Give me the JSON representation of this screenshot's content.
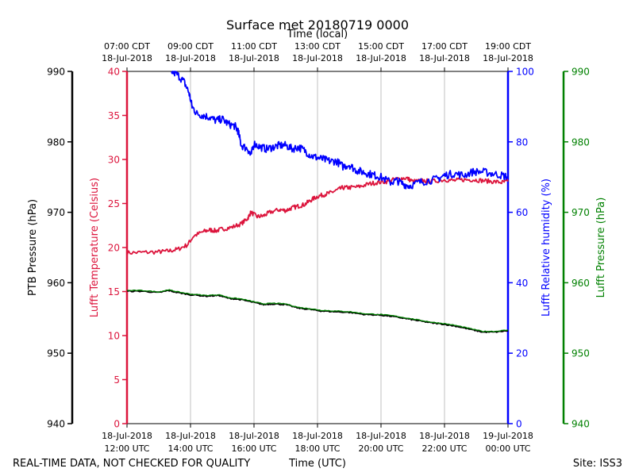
{
  "chart_data": {
    "type": "line",
    "title": "Surface met 20180719 0000",
    "top_axis_label": "Time (local)",
    "bottom_axis_label": "Time (UTC)",
    "x_range_hours_utc": [
      12,
      24
    ],
    "top_ticks": [
      {
        "h": 12,
        "line1": "07:00 CDT",
        "line2": "18-Jul-2018"
      },
      {
        "h": 14,
        "line1": "09:00 CDT",
        "line2": "18-Jul-2018"
      },
      {
        "h": 16,
        "line1": "11:00 CDT",
        "line2": "18-Jul-2018"
      },
      {
        "h": 18,
        "line1": "13:00 CDT",
        "line2": "18-Jul-2018"
      },
      {
        "h": 20,
        "line1": "15:00 CDT",
        "line2": "18-Jul-2018"
      },
      {
        "h": 22,
        "line1": "17:00 CDT",
        "line2": "18-Jul-2018"
      },
      {
        "h": 24,
        "line1": "19:00 CDT",
        "line2": "18-Jul-2018"
      }
    ],
    "bottom_ticks": [
      {
        "h": 12,
        "line1": "18-Jul-2018",
        "line2": "12:00 UTC"
      },
      {
        "h": 14,
        "line1": "18-Jul-2018",
        "line2": "14:00 UTC"
      },
      {
        "h": 16,
        "line1": "18-Jul-2018",
        "line2": "16:00 UTC"
      },
      {
        "h": 18,
        "line1": "18-Jul-2018",
        "line2": "18:00 UTC"
      },
      {
        "h": 20,
        "line1": "18-Jul-2018",
        "line2": "20:00 UTC"
      },
      {
        "h": 22,
        "line1": "18-Jul-2018",
        "line2": "22:00 UTC"
      },
      {
        "h": 24,
        "line1": "19-Jul-2018",
        "line2": "00:00 UTC"
      }
    ],
    "axes": {
      "ptb_pressure": {
        "label": "PTB Pressure (hPa)",
        "range": [
          940,
          990
        ],
        "ticks": [
          "940",
          "950",
          "960",
          "970",
          "980",
          "990"
        ],
        "color": "#000000"
      },
      "lufft_temperature": {
        "label": "Lufft Temperature (Celsius)",
        "range": [
          0,
          40
        ],
        "ticks": [
          "0",
          "5",
          "10",
          "15",
          "20",
          "25",
          "30",
          "35",
          "40"
        ],
        "color": "#dc143c"
      },
      "lufft_humidity": {
        "label": "Lufft Relative humidity (%)",
        "range": [
          0,
          100
        ],
        "ticks": [
          "0",
          "20",
          "40",
          "60",
          "80",
          "100"
        ],
        "color": "#0000ff"
      },
      "lufft_pressure": {
        "label": "Lufft Pressure (hPa)",
        "range": [
          940,
          990
        ],
        "ticks": [
          "940",
          "950",
          "960",
          "970",
          "980",
          "990"
        ],
        "color": "#008000"
      }
    },
    "series": [
      {
        "name": "Lufft Temperature",
        "axis": "lufft_temperature",
        "color": "#dc143c",
        "points": [
          [
            12.0,
            19.4
          ],
          [
            12.5,
            19.45
          ],
          [
            13.0,
            19.5
          ],
          [
            13.3,
            19.6
          ],
          [
            13.6,
            19.8
          ],
          [
            13.9,
            20.3
          ],
          [
            14.1,
            21.3
          ],
          [
            14.4,
            21.8
          ],
          [
            14.6,
            22.0
          ],
          [
            14.8,
            21.9
          ],
          [
            15.0,
            22.1
          ],
          [
            15.3,
            22.3
          ],
          [
            15.6,
            22.7
          ],
          [
            15.8,
            23.3
          ],
          [
            15.9,
            24.0
          ],
          [
            16.1,
            23.5
          ],
          [
            16.3,
            23.6
          ],
          [
            16.5,
            24.0
          ],
          [
            16.8,
            24.3
          ],
          [
            17.0,
            24.2
          ],
          [
            17.2,
            24.5
          ],
          [
            17.4,
            24.7
          ],
          [
            17.6,
            24.9
          ],
          [
            17.8,
            25.4
          ],
          [
            18.0,
            25.8
          ],
          [
            18.2,
            26.0
          ],
          [
            18.4,
            26.2
          ],
          [
            18.6,
            26.5
          ],
          [
            18.8,
            26.8
          ],
          [
            19.0,
            26.8
          ],
          [
            19.3,
            26.9
          ],
          [
            19.6,
            27.2
          ],
          [
            19.9,
            27.4
          ],
          [
            20.2,
            27.5
          ],
          [
            20.5,
            27.8
          ],
          [
            20.8,
            27.9
          ],
          [
            21.0,
            27.5
          ],
          [
            21.3,
            27.6
          ],
          [
            21.6,
            27.5
          ],
          [
            22.0,
            27.7
          ],
          [
            22.3,
            27.6
          ],
          [
            22.6,
            27.7
          ],
          [
            22.9,
            27.7
          ],
          [
            23.2,
            27.6
          ],
          [
            23.5,
            27.5
          ],
          [
            23.8,
            27.4
          ],
          [
            24.0,
            27.5
          ]
        ]
      },
      {
        "name": "Lufft Relative humidity",
        "axis": "lufft_humidity",
        "color": "#0000ff",
        "points": [
          [
            13.4,
            100.0
          ],
          [
            13.6,
            99.0
          ],
          [
            13.8,
            97.0
          ],
          [
            13.95,
            94.0
          ],
          [
            14.05,
            90.0
          ],
          [
            14.2,
            88.0
          ],
          [
            14.4,
            87.5
          ],
          [
            14.6,
            87.0
          ],
          [
            14.8,
            86.0
          ],
          [
            15.0,
            86.5
          ],
          [
            15.2,
            85.0
          ],
          [
            15.4,
            84.5
          ],
          [
            15.5,
            83.0
          ],
          [
            15.6,
            79.0
          ],
          [
            15.8,
            78.0
          ],
          [
            15.9,
            76.0
          ],
          [
            16.0,
            79.5
          ],
          [
            16.2,
            78.5
          ],
          [
            16.4,
            78.0
          ],
          [
            16.6,
            78.5
          ],
          [
            16.8,
            79.0
          ],
          [
            17.0,
            79.0
          ],
          [
            17.2,
            78.0
          ],
          [
            17.4,
            78.5
          ],
          [
            17.6,
            77.5
          ],
          [
            17.8,
            76.0
          ],
          [
            18.0,
            75.5
          ],
          [
            18.2,
            75.0
          ],
          [
            18.4,
            74.5
          ],
          [
            18.6,
            74.5
          ],
          [
            18.8,
            73.0
          ],
          [
            19.0,
            73.5
          ],
          [
            19.2,
            72.0
          ],
          [
            19.4,
            71.5
          ],
          [
            19.6,
            71.0
          ],
          [
            19.8,
            70.5
          ],
          [
            20.0,
            70.0
          ],
          [
            20.3,
            68.5
          ],
          [
            20.5,
            69.0
          ],
          [
            20.7,
            68.0
          ],
          [
            20.9,
            67.5
          ],
          [
            21.2,
            68.5
          ],
          [
            21.5,
            69.0
          ],
          [
            21.8,
            69.5
          ],
          [
            22.0,
            70.5
          ],
          [
            22.3,
            71.0
          ],
          [
            22.6,
            70.5
          ],
          [
            22.9,
            71.5
          ],
          [
            23.2,
            71.5
          ],
          [
            23.5,
            71.0
          ],
          [
            23.8,
            70.5
          ],
          [
            24.0,
            70.0
          ]
        ]
      },
      {
        "name": "PTB Pressure",
        "axis": "ptb_pressure",
        "color": "#000000",
        "points": [
          [
            12.0,
            958.8
          ],
          [
            12.5,
            958.8
          ],
          [
            13.0,
            958.6
          ],
          [
            13.3,
            958.9
          ],
          [
            13.6,
            958.6
          ],
          [
            14.0,
            958.3
          ],
          [
            14.5,
            958.1
          ],
          [
            14.9,
            958.2
          ],
          [
            15.2,
            957.8
          ],
          [
            15.6,
            957.6
          ],
          [
            16.0,
            957.2
          ],
          [
            16.3,
            956.9
          ],
          [
            16.6,
            957.0
          ],
          [
            17.0,
            956.9
          ],
          [
            17.4,
            956.4
          ],
          [
            17.8,
            956.2
          ],
          [
            18.1,
            956.0
          ],
          [
            18.5,
            955.9
          ],
          [
            19.0,
            955.8
          ],
          [
            19.5,
            955.5
          ],
          [
            20.0,
            955.4
          ],
          [
            20.4,
            955.2
          ],
          [
            20.8,
            954.9
          ],
          [
            21.2,
            954.6
          ],
          [
            21.6,
            954.3
          ],
          [
            22.0,
            954.1
          ],
          [
            22.4,
            953.8
          ],
          [
            22.8,
            953.4
          ],
          [
            23.2,
            953.0
          ],
          [
            23.6,
            953.0
          ],
          [
            24.0,
            953.2
          ]
        ]
      },
      {
        "name": "Lufft Pressure",
        "axis": "lufft_pressure",
        "color": "#008000",
        "points": [
          [
            12.0,
            958.9
          ],
          [
            12.5,
            958.9
          ],
          [
            13.0,
            958.7
          ],
          [
            13.3,
            959.0
          ],
          [
            13.6,
            958.7
          ],
          [
            14.0,
            958.4
          ],
          [
            14.5,
            958.2
          ],
          [
            14.9,
            958.3
          ],
          [
            15.2,
            957.9
          ],
          [
            15.6,
            957.7
          ],
          [
            16.0,
            957.3
          ],
          [
            16.3,
            957.0
          ],
          [
            16.6,
            957.1
          ],
          [
            17.0,
            957.0
          ],
          [
            17.4,
            956.5
          ],
          [
            17.8,
            956.3
          ],
          [
            18.1,
            956.1
          ],
          [
            18.5,
            956.0
          ],
          [
            19.0,
            955.9
          ],
          [
            19.5,
            955.6
          ],
          [
            20.0,
            955.5
          ],
          [
            20.4,
            955.3
          ],
          [
            20.8,
            955.0
          ],
          [
            21.2,
            954.7
          ],
          [
            21.6,
            954.4
          ],
          [
            22.0,
            954.2
          ],
          [
            22.4,
            953.9
          ],
          [
            22.8,
            953.5
          ],
          [
            23.2,
            953.1
          ],
          [
            23.6,
            953.1
          ],
          [
            24.0,
            953.3
          ]
        ]
      }
    ],
    "grid": "vertical"
  },
  "footer": {
    "left": "REAL-TIME DATA, NOT CHECKED FOR QUALITY",
    "right": "Site: ISS3"
  }
}
